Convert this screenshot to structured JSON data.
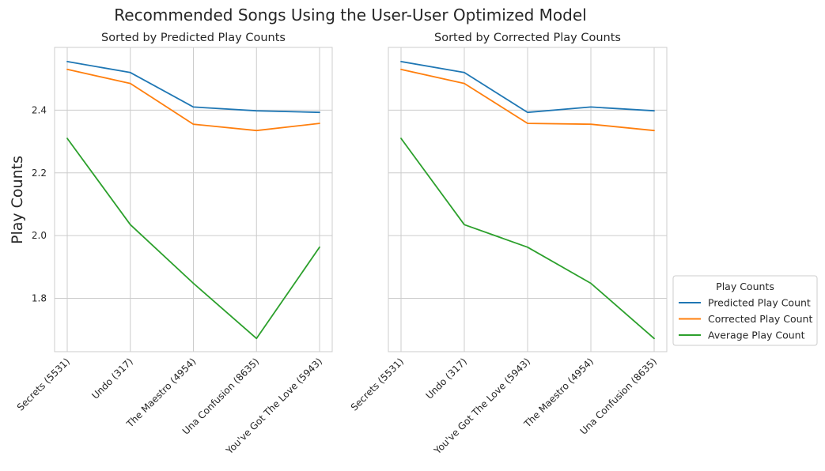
{
  "figure": {
    "title": "Recommended Songs Using the User-User Optimized Model",
    "ylabel": "Play Counts"
  },
  "legend": {
    "title": "Play Counts",
    "placement": "outside-right",
    "entries": [
      {
        "label": "Predicted Play Count",
        "color": "#1f77b4"
      },
      {
        "label": "Corrected Play Count",
        "color": "#ff7f0e"
      },
      {
        "label": "Average Play Count",
        "color": "#2ca02c"
      }
    ]
  },
  "chart_data": [
    {
      "type": "line",
      "title": "Sorted by Predicted Play Counts",
      "xlabel": "",
      "ylabel": "Play Counts",
      "ylim": [
        1.63,
        2.6
      ],
      "yticks": [
        1.8,
        2.0,
        2.2,
        2.4
      ],
      "ytick_labels": [
        "1.8",
        "2.0",
        "2.2",
        "2.4"
      ],
      "grid": true,
      "categories": [
        "Secrets (5531)",
        "Undo (317)",
        "The Maestro (4954)",
        "Una Confusion (8635)",
        "You've Got The Love (5943)"
      ],
      "series": [
        {
          "name": "Predicted Play Count",
          "color": "#1f77b4",
          "values": [
            2.555,
            2.52,
            2.41,
            2.398,
            2.393
          ]
        },
        {
          "name": "Corrected Play Count",
          "color": "#ff7f0e",
          "values": [
            2.53,
            2.485,
            2.355,
            2.335,
            2.358
          ]
        },
        {
          "name": "Average Play Count",
          "color": "#2ca02c",
          "values": [
            2.31,
            2.035,
            1.848,
            1.672,
            1.963
          ]
        }
      ]
    },
    {
      "type": "line",
      "title": "Sorted by Corrected Play Counts",
      "xlabel": "",
      "ylabel": "",
      "ylim": [
        1.63,
        2.6
      ],
      "yticks": [
        1.8,
        2.0,
        2.2,
        2.4
      ],
      "ytick_labels": [
        "",
        "",
        "",
        ""
      ],
      "grid": true,
      "categories": [
        "Secrets (5531)",
        "Undo (317)",
        "You've Got The Love (5943)",
        "The Maestro (4954)",
        "Una Confusion (8635)"
      ],
      "series": [
        {
          "name": "Predicted Play Count",
          "color": "#1f77b4",
          "values": [
            2.555,
            2.52,
            2.393,
            2.41,
            2.398
          ]
        },
        {
          "name": "Corrected Play Count",
          "color": "#ff7f0e",
          "values": [
            2.53,
            2.485,
            2.358,
            2.355,
            2.335
          ]
        },
        {
          "name": "Average Play Count",
          "color": "#2ca02c",
          "values": [
            2.31,
            2.035,
            1.963,
            1.848,
            1.672
          ]
        }
      ]
    }
  ]
}
